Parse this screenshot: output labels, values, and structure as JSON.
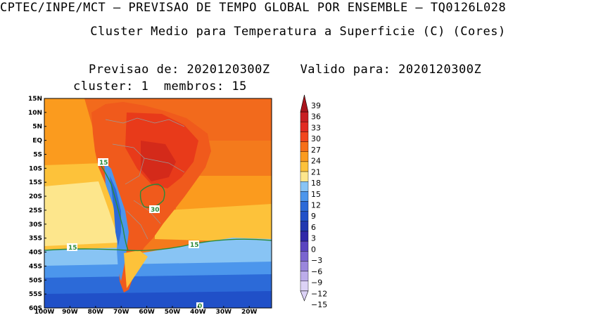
{
  "header": {
    "title": "CPTEC/INPE/MCT – PREVISAO DE TEMPO GLOBAL POR ENSEMBLE – TQ0126L028",
    "subtitle": "Cluster Medio para Temperatura a Superficie (C) (Cores)",
    "forecast_line": "Previsao de: 2020120300Z    Valido para: 2020120300Z",
    "cluster_line": "cluster: 1  membros: 15"
  },
  "map": {
    "lat_labels": [
      "15N",
      "10N",
      "5N",
      "EQ",
      "5S",
      "10S",
      "15S",
      "20S",
      "25S",
      "30S",
      "35S",
      "40S",
      "45S",
      "50S",
      "55S",
      "60S"
    ],
    "lon_labels": [
      "100W",
      "90W",
      "80W",
      "70W",
      "60W",
      "50W",
      "40W",
      "30W",
      "20W"
    ],
    "contour_labels": [
      "15",
      "15",
      "30",
      "15",
      "0"
    ],
    "contour_color": "#2a8a3a",
    "ocean_warm": "#f26a1c",
    "land_hot": "#e83a1a"
  },
  "colorbar": {
    "labels": [
      "39",
      "36",
      "33",
      "30",
      "27",
      "24",
      "21",
      "18",
      "15",
      "12",
      "9",
      "6",
      "3",
      "0",
      "−3",
      "−6",
      "−9",
      "−12",
      "−15"
    ],
    "colors": [
      "#a8141c",
      "#c81e22",
      "#e22a22",
      "#f2461e",
      "#f76f18",
      "#fb9b1e",
      "#fdc23a",
      "#fde68c",
      "#88c4f4",
      "#4c96ec",
      "#2c6ad8",
      "#2050c8",
      "#2038b0",
      "#3028a8",
      "#5a44c0",
      "#7a64d0",
      "#9a86dc",
      "#bcacea",
      "#dcd2f6"
    ]
  }
}
